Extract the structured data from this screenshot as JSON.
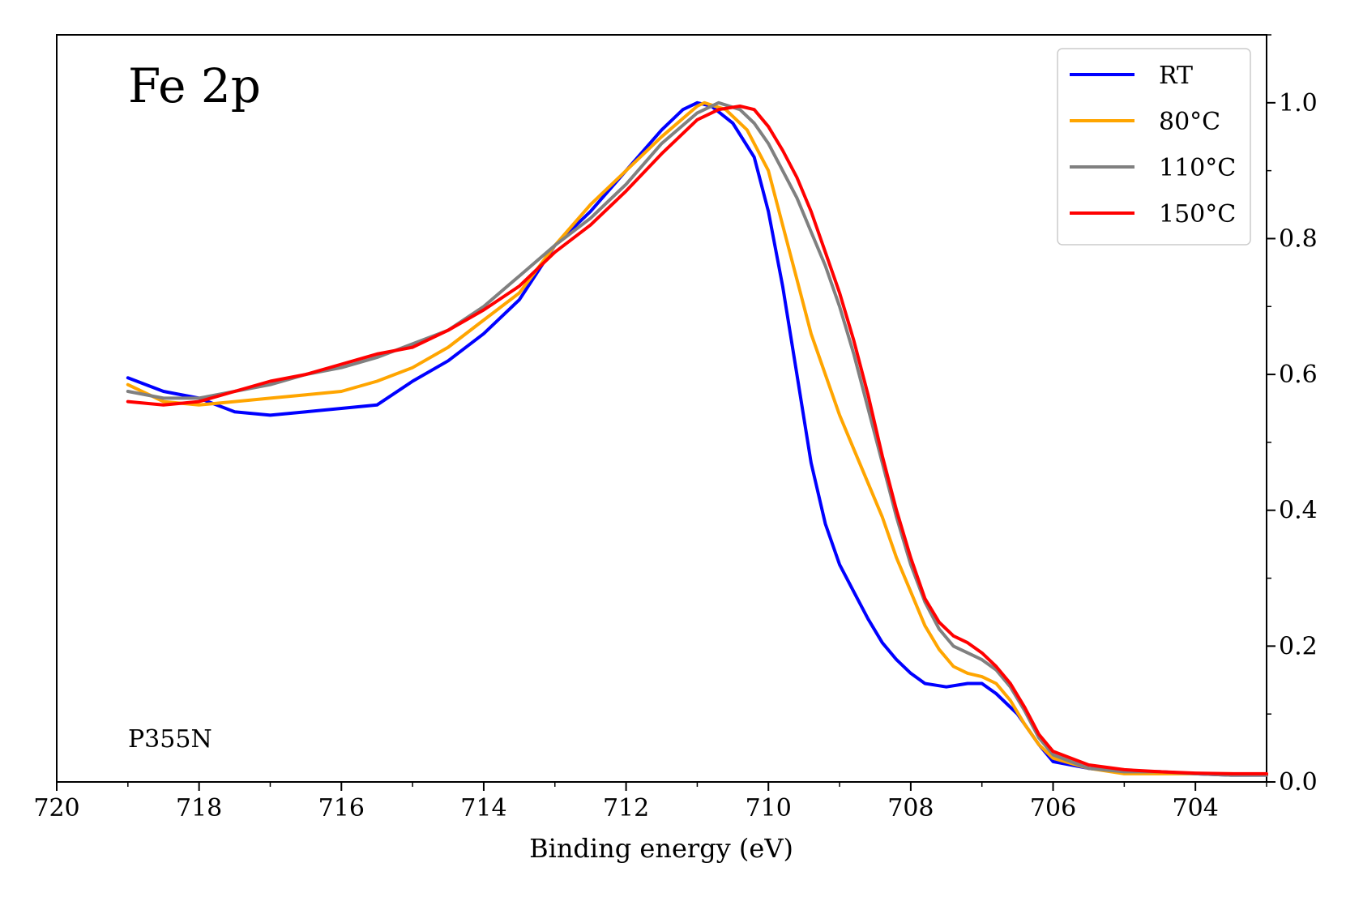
{
  "chart_data": {
    "type": "line",
    "title": "Fe 2p",
    "annotation": "P355N",
    "xlabel": "Binding energy (eV)",
    "ylabel": "",
    "xlim": [
      720,
      703
    ],
    "x_reversed": true,
    "ylim": [
      0.0,
      1.1
    ],
    "y_axis_side": "right",
    "x_ticks": [
      720,
      718,
      716,
      714,
      712,
      710,
      708,
      706,
      704
    ],
    "x_tick_labels": [
      "720",
      "718",
      "716",
      "714",
      "712",
      "710",
      "708",
      "706",
      "704"
    ],
    "y_ticks": [
      0.0,
      0.2,
      0.4,
      0.6,
      0.8,
      1.0
    ],
    "y_tick_labels": [
      "0.0",
      "0.2",
      "0.4",
      "0.6",
      "0.8",
      "1.0"
    ],
    "grid": false,
    "legend_position": "top-right",
    "series": [
      {
        "name": "RT",
        "color": "#0000ff",
        "x": [
          719.0,
          718.5,
          718.0,
          717.5,
          717.0,
          716.5,
          716.0,
          715.5,
          715.0,
          714.5,
          714.0,
          713.5,
          713.0,
          712.5,
          712.0,
          711.5,
          711.2,
          711.0,
          710.8,
          710.5,
          710.2,
          710.0,
          709.8,
          709.6,
          709.4,
          709.2,
          709.0,
          708.8,
          708.6,
          708.4,
          708.2,
          708.0,
          707.8,
          707.5,
          707.2,
          707.0,
          706.8,
          706.5,
          706.2,
          706.0,
          705.5,
          705.0,
          704.5,
          704.0,
          703.5,
          703.0
        ],
        "y": [
          0.595,
          0.575,
          0.565,
          0.545,
          0.54,
          0.545,
          0.55,
          0.555,
          0.59,
          0.62,
          0.66,
          0.71,
          0.79,
          0.84,
          0.9,
          0.96,
          0.99,
          1.0,
          0.995,
          0.97,
          0.92,
          0.84,
          0.73,
          0.6,
          0.47,
          0.38,
          0.32,
          0.28,
          0.24,
          0.205,
          0.18,
          0.16,
          0.145,
          0.14,
          0.145,
          0.145,
          0.13,
          0.1,
          0.055,
          0.03,
          0.02,
          0.015,
          0.015,
          0.012,
          0.01,
          0.01
        ]
      },
      {
        "name": "80°C",
        "color": "#ffa500",
        "x": [
          719.0,
          718.5,
          718.0,
          717.5,
          717.0,
          716.5,
          716.0,
          715.5,
          715.0,
          714.5,
          714.0,
          713.5,
          713.0,
          712.5,
          712.0,
          711.5,
          711.0,
          710.9,
          710.6,
          710.3,
          710.0,
          709.8,
          709.6,
          709.4,
          709.2,
          709.0,
          708.8,
          708.6,
          708.4,
          708.2,
          708.0,
          707.8,
          707.6,
          707.4,
          707.2,
          707.0,
          706.8,
          706.6,
          706.4,
          706.2,
          706.0,
          705.5,
          705.0,
          704.5,
          704.0,
          703.5,
          703.0
        ],
        "y": [
          0.585,
          0.56,
          0.555,
          0.56,
          0.565,
          0.57,
          0.575,
          0.59,
          0.61,
          0.64,
          0.68,
          0.72,
          0.79,
          0.85,
          0.9,
          0.95,
          0.995,
          1.0,
          0.99,
          0.96,
          0.9,
          0.82,
          0.74,
          0.66,
          0.6,
          0.54,
          0.49,
          0.44,
          0.39,
          0.33,
          0.28,
          0.23,
          0.195,
          0.17,
          0.16,
          0.155,
          0.145,
          0.12,
          0.085,
          0.055,
          0.035,
          0.02,
          0.012,
          0.012,
          0.012,
          0.012,
          0.01
        ]
      },
      {
        "name": "110°C",
        "color": "#808080",
        "x": [
          719.0,
          718.5,
          718.0,
          717.5,
          717.0,
          716.5,
          716.0,
          715.5,
          715.0,
          714.5,
          714.0,
          713.5,
          713.0,
          712.5,
          712.0,
          711.5,
          711.0,
          710.7,
          710.4,
          710.2,
          710.0,
          709.8,
          709.6,
          709.4,
          709.2,
          709.0,
          708.8,
          708.6,
          708.4,
          708.2,
          708.0,
          707.8,
          707.6,
          707.4,
          707.2,
          707.0,
          706.8,
          706.6,
          706.4,
          706.2,
          706.0,
          705.5,
          705.0,
          704.5,
          704.0,
          703.5,
          703.0
        ],
        "y": [
          0.575,
          0.565,
          0.565,
          0.575,
          0.585,
          0.6,
          0.61,
          0.625,
          0.645,
          0.665,
          0.7,
          0.745,
          0.79,
          0.83,
          0.88,
          0.94,
          0.985,
          1.0,
          0.99,
          0.97,
          0.94,
          0.9,
          0.86,
          0.81,
          0.76,
          0.7,
          0.63,
          0.55,
          0.47,
          0.39,
          0.32,
          0.265,
          0.225,
          0.2,
          0.19,
          0.18,
          0.165,
          0.14,
          0.105,
          0.065,
          0.04,
          0.02,
          0.015,
          0.015,
          0.012,
          0.01,
          0.01
        ]
      },
      {
        "name": "150°C",
        "color": "#ff0000",
        "x": [
          719.0,
          718.5,
          718.0,
          717.5,
          717.0,
          716.5,
          716.0,
          715.5,
          715.0,
          714.5,
          714.0,
          713.5,
          713.0,
          712.5,
          712.0,
          711.5,
          711.0,
          710.7,
          710.4,
          710.2,
          710.0,
          709.8,
          709.6,
          709.4,
          709.2,
          709.0,
          708.8,
          708.6,
          708.4,
          708.2,
          708.0,
          707.8,
          707.6,
          707.4,
          707.2,
          707.0,
          706.8,
          706.6,
          706.4,
          706.2,
          706.0,
          705.5,
          705.0,
          704.5,
          704.0,
          703.5,
          703.0
        ],
        "y": [
          0.56,
          0.555,
          0.56,
          0.575,
          0.59,
          0.6,
          0.615,
          0.63,
          0.64,
          0.665,
          0.695,
          0.73,
          0.78,
          0.82,
          0.87,
          0.925,
          0.975,
          0.99,
          0.995,
          0.99,
          0.965,
          0.93,
          0.89,
          0.84,
          0.78,
          0.72,
          0.65,
          0.57,
          0.48,
          0.4,
          0.33,
          0.27,
          0.235,
          0.215,
          0.205,
          0.19,
          0.17,
          0.145,
          0.11,
          0.07,
          0.045,
          0.025,
          0.018,
          0.015,
          0.013,
          0.012,
          0.012
        ]
      }
    ]
  }
}
